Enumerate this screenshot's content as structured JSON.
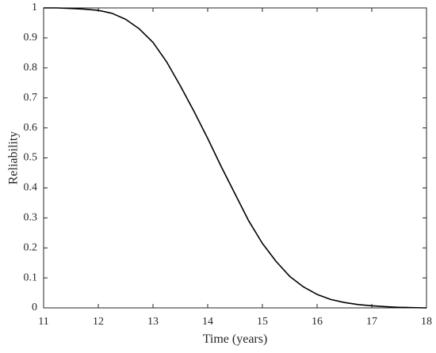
{
  "chart_data": {
    "type": "line",
    "xlabel": "Time (years)",
    "ylabel": "Reliability",
    "x": [
      11,
      11.25,
      11.5,
      11.75,
      12,
      12.25,
      12.5,
      12.75,
      13,
      13.25,
      13.5,
      13.75,
      14,
      14.25,
      14.5,
      14.75,
      15,
      15.25,
      15.5,
      15.75,
      16,
      16.25,
      16.5,
      16.75,
      17,
      17.25,
      17.5,
      17.75,
      18
    ],
    "values": [
      1,
      1,
      0.998,
      0.996,
      0.992,
      0.982,
      0.962,
      0.93,
      0.885,
      0.82,
      0.74,
      0.655,
      0.565,
      0.47,
      0.38,
      0.29,
      0.215,
      0.155,
      0.105,
      0.07,
      0.045,
      0.028,
      0.018,
      0.011,
      0.007,
      0.004,
      0.002,
      0.001,
      0
    ],
    "color": "#000000",
    "xlim": [
      11,
      18
    ],
    "xticks": [
      11,
      12,
      13,
      14,
      15,
      16,
      17,
      18
    ],
    "ylim": [
      0,
      1
    ],
    "yticks": [
      0,
      0.1,
      0.2,
      0.3,
      0.4,
      0.5,
      0.6,
      0.7,
      0.8,
      0.9,
      1
    ],
    "grid": false
  }
}
